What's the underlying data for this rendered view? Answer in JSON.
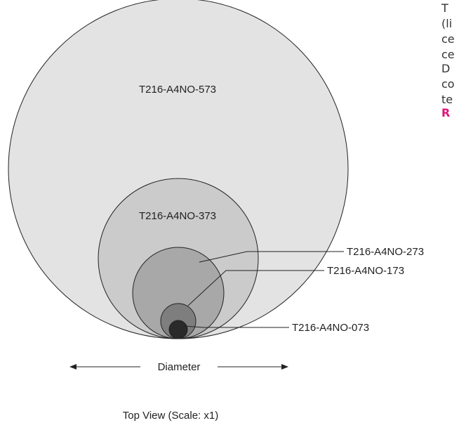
{
  "diagram": {
    "circles": [
      {
        "label": "T216-A4NO-573",
        "fill": "#e3e3e3"
      },
      {
        "label": "T216-A4NO-373",
        "fill": "#cbcbcb"
      },
      {
        "label": "T216-A4NO-273",
        "fill": "#a8a8a8"
      },
      {
        "label": "T216-A4NO-173",
        "fill": "#7e7e7e"
      },
      {
        "label": "T216-A4NO-073",
        "fill": "#2a2a2a"
      }
    ],
    "diameter_label": "Diameter",
    "caption": "Top View (Scale: x1)"
  },
  "side_text": {
    "para1": [
      "T",
      "(li",
      "ce",
      "ce"
    ],
    "para2": [
      "D",
      "co",
      "te"
    ],
    "link": "R"
  },
  "colors": {
    "accent": "#e0157d"
  }
}
